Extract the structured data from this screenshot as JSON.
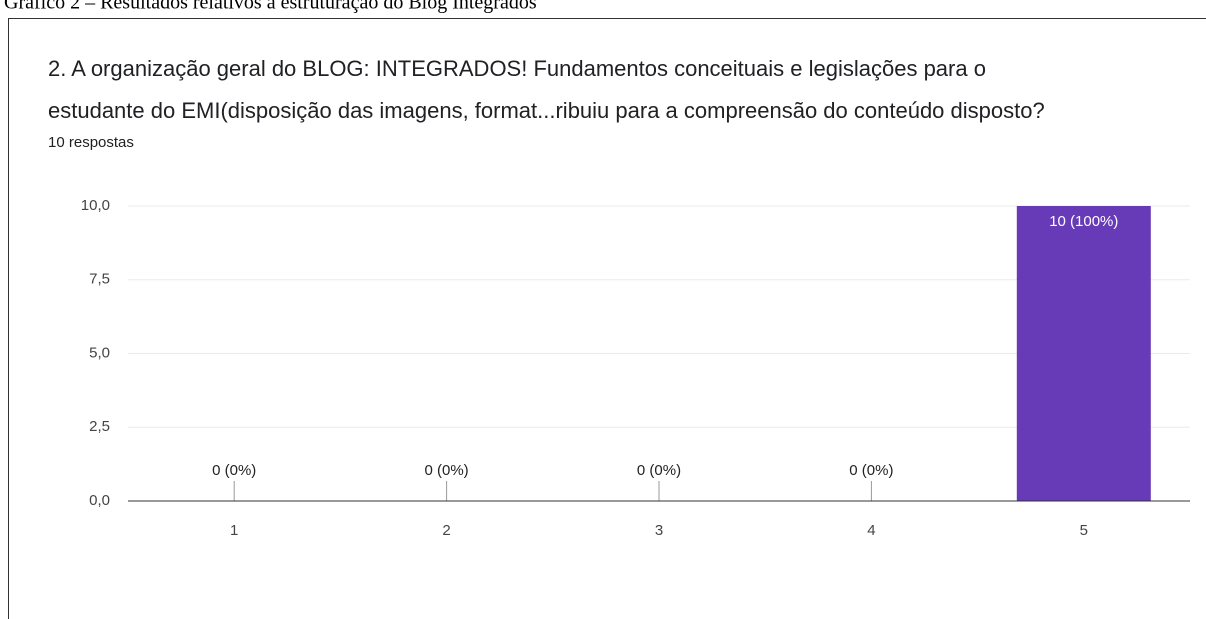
{
  "caption": "Gráfico 2 – Resultados relativos à estruturação do Blog Integrados",
  "chart_data": {
    "type": "bar",
    "title": [
      "2. A organização geral do BLOG: INTEGRADOS! Fundamentos conceituais e legislações para o",
      "estudante do EMI(disposição das imagens, format...ribuiu para a compreensão do conteúdo disposto?"
    ],
    "subtitle": "10 respostas",
    "categories": [
      "1",
      "2",
      "3",
      "4",
      "5"
    ],
    "values": [
      0,
      0,
      0,
      0,
      10
    ],
    "value_labels": [
      "0 (0%)",
      "0 (0%)",
      "0 (0%)",
      "0 (0%)",
      "10 (100%)"
    ],
    "color": "#673ab7",
    "ylim": [
      0,
      10
    ],
    "yticks": [
      {
        "value": 0,
        "label": "0,0"
      },
      {
        "value": 2.5,
        "label": "2,5"
      },
      {
        "value": 5,
        "label": "5,0"
      },
      {
        "value": 7.5,
        "label": "7,5"
      },
      {
        "value": 10,
        "label": "10,0"
      }
    ],
    "grid": true
  }
}
